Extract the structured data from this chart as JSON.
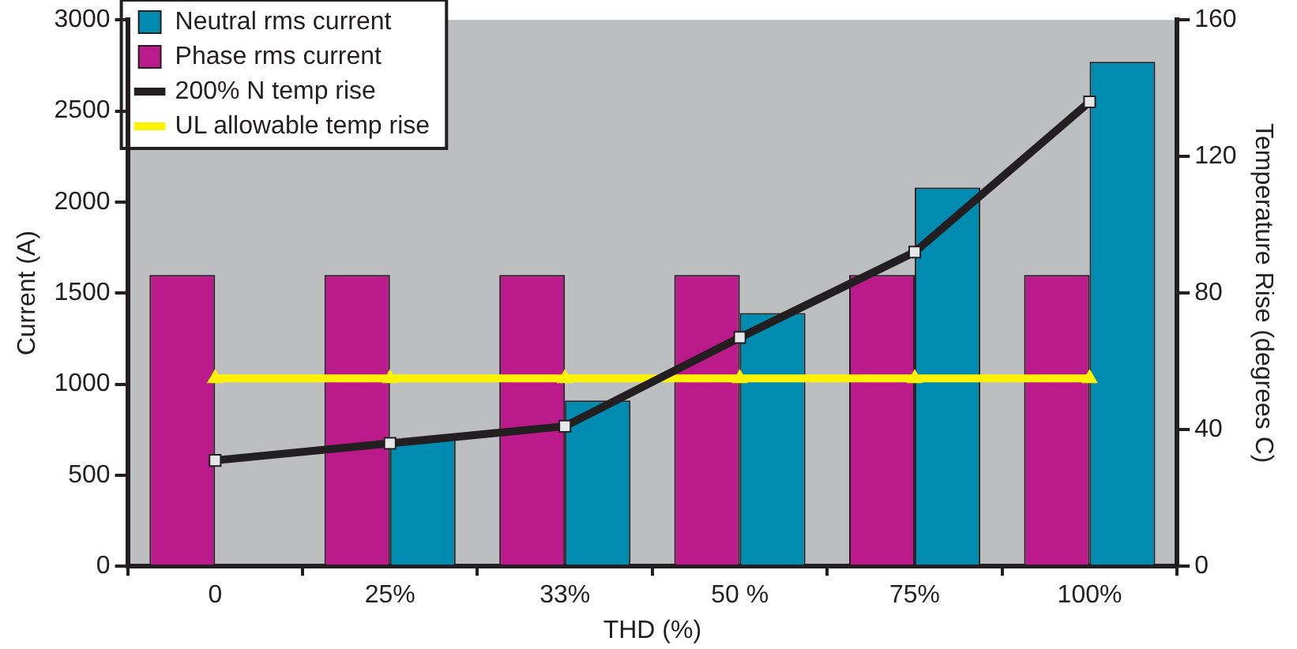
{
  "chart_data": {
    "type": "bar",
    "xlabel": "THD (%)",
    "ylabel": "Current (A)",
    "y2label": "Temperature Rise (degrees C)",
    "categories": [
      "0",
      "25%",
      "33%",
      "50 %",
      "75%",
      "100%"
    ],
    "series": [
      {
        "name": "Neutral rms current",
        "color": "#008bb0",
        "values": [
          null,
          700,
          910,
          1390,
          2080,
          2770
        ]
      },
      {
        "name": "Phase rms current",
        "color": "#bb1a8b",
        "values": [
          1600,
          1600,
          1600,
          1600,
          1600,
          1600
        ]
      },
      {
        "name": "200% N temp rise",
        "type": "line",
        "axis": "y2",
        "color": "#231f20",
        "marker": "square",
        "values": [
          31,
          36,
          41,
          67,
          92,
          136
        ]
      },
      {
        "name": "UL allowable temp rise",
        "type": "line",
        "axis": "y2",
        "color": "#fff200",
        "marker": "triangle",
        "values": [
          55,
          55,
          55,
          55,
          55,
          55
        ]
      }
    ],
    "ylim": [
      0,
      3000
    ],
    "yticks": [
      0,
      500,
      1000,
      1500,
      2000,
      2500,
      3000
    ],
    "y2lim": [
      0,
      160
    ],
    "y2ticks": [
      0,
      40,
      80,
      120,
      160
    ],
    "grid": false,
    "legend": "top left"
  }
}
